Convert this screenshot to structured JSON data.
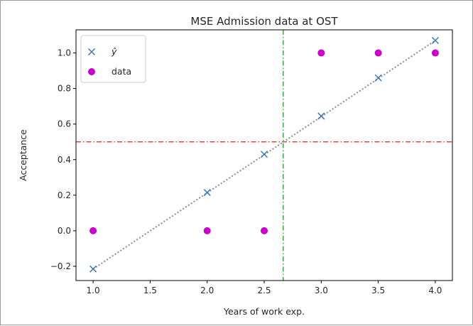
{
  "chart_data": {
    "type": "scatter",
    "title": "MSE Admission data at OST",
    "xlabel": "Years of work exp.",
    "ylabel": "Acceptance",
    "xlim": [
      0.85,
      4.15
    ],
    "ylim": [
      -0.28,
      1.13
    ],
    "xticks": [
      1.0,
      1.5,
      2.0,
      2.5,
      3.0,
      3.5,
      4.0
    ],
    "xtick_labels": [
      "1.0",
      "1.5",
      "2.0",
      "2.5",
      "3.0",
      "3.5",
      "4.0"
    ],
    "yticks": [
      -0.2,
      0.0,
      0.2,
      0.4,
      0.6,
      0.8,
      1.0
    ],
    "ytick_labels": [
      "−0.2",
      "0.0",
      "0.2",
      "0.4",
      "0.6",
      "0.8",
      "1.0"
    ],
    "grid": false,
    "legend_position": "top-left",
    "series": [
      {
        "name": "ŷ",
        "marker": "x",
        "color": "#3b78b5",
        "x": [
          1.0,
          2.0,
          2.5,
          3.0,
          3.5,
          4.0
        ],
        "y": [
          -0.215,
          0.215,
          0.43,
          0.645,
          0.86,
          1.07
        ]
      },
      {
        "name": "data",
        "marker": "circle",
        "color": "#cc00cc",
        "x": [
          1.0,
          2.0,
          2.5,
          3.0,
          3.5,
          4.0
        ],
        "y": [
          0,
          0,
          0,
          1,
          1,
          1
        ]
      }
    ],
    "fit_line": {
      "style": "dotted",
      "color": "#8c8c8c",
      "x": [
        1.0,
        4.0
      ],
      "y": [
        -0.215,
        1.07
      ]
    },
    "hline": {
      "y": 0.5,
      "style": "dash-dot",
      "color": "#dd2222"
    },
    "vline": {
      "x": 2.667,
      "style": "dash-dot",
      "color": "#119911"
    }
  }
}
